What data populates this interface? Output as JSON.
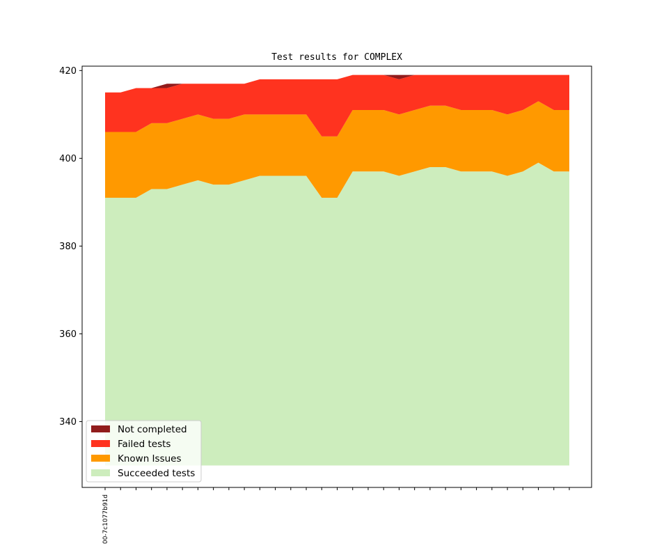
{
  "chart_data": {
    "type": "area",
    "stacked": true,
    "title": "Test results for COMPLEX",
    "xlabel": "",
    "ylabel": "",
    "ylim": [
      325,
      421
    ],
    "yticks": [
      340,
      360,
      380,
      400,
      420
    ],
    "x_tick_labels": [
      "00-7c1077b91d"
    ],
    "grid": false,
    "legend_placement": "lower-left",
    "series": [
      {
        "name": "Succeeded tests",
        "color": "#cdedbd",
        "values": [
          391,
          391,
          391,
          393,
          393,
          394,
          395,
          394,
          394,
          395,
          396,
          396,
          396,
          396,
          391,
          391,
          397,
          397,
          397,
          396,
          397,
          398,
          398,
          397,
          397,
          397,
          396,
          397,
          399,
          397,
          397
        ]
      },
      {
        "name": "Known Issues",
        "color": "#ff9900",
        "values": [
          406,
          406,
          406,
          408,
          408,
          409,
          410,
          409,
          409,
          410,
          410,
          410,
          410,
          410,
          405,
          405,
          411,
          411,
          411,
          410,
          411,
          412,
          412,
          411,
          411,
          411,
          410,
          411,
          413,
          411,
          411
        ]
      },
      {
        "name": "Failed tests",
        "color": "#ff331f",
        "values": [
          415,
          415,
          416,
          416,
          416,
          417,
          417,
          417,
          417,
          417,
          418,
          418,
          418,
          418,
          418,
          418,
          419,
          419,
          419,
          418,
          419,
          419,
          419,
          419,
          419,
          419,
          419,
          419,
          419,
          419,
          419
        ]
      },
      {
        "name": "Not completed",
        "color": "#911c1c",
        "values": [
          415,
          415,
          416,
          416,
          417,
          417,
          417,
          417,
          417,
          417,
          418,
          418,
          418,
          418,
          418,
          418,
          419,
          419,
          419,
          419,
          419,
          419,
          419,
          419,
          419,
          419,
          419,
          419,
          419,
          419,
          419
        ]
      }
    ],
    "baseline": 330,
    "legend": [
      "Not completed",
      "Failed tests",
      "Known Issues",
      "Succeeded tests"
    ]
  }
}
